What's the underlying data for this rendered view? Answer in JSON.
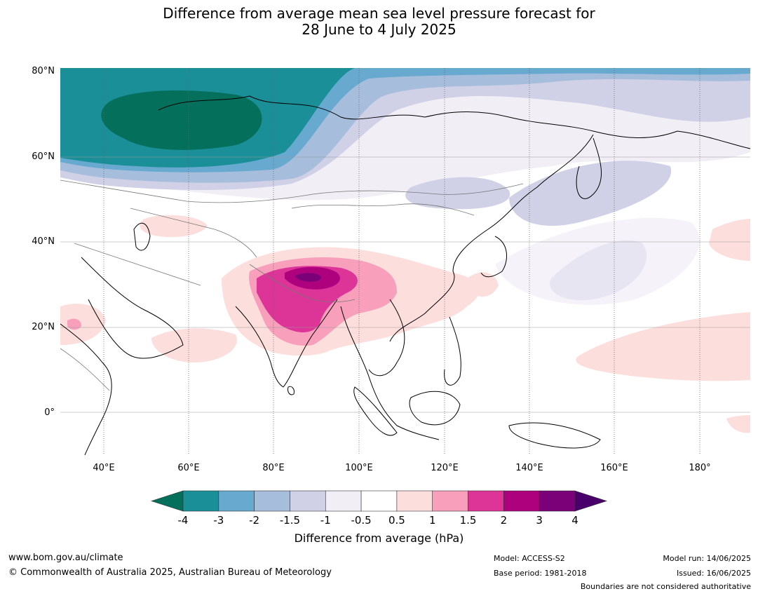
{
  "title": {
    "line1": "Difference from average mean sea level pressure forecast for",
    "line2": "28 June to 4 July 2025"
  },
  "map": {
    "lat_labels": [
      "80°N",
      "60°N",
      "40°N",
      "20°N",
      "0°"
    ],
    "lon_labels": [
      "40°E",
      "60°E",
      "80°E",
      "100°E",
      "120°E",
      "140°E",
      "160°E",
      "180°"
    ]
  },
  "legend": {
    "title": "Difference from average (hPa)",
    "ticks": [
      "-4",
      "-3",
      "-2",
      "-1.5",
      "-1",
      "-0.5",
      "0.5",
      "1",
      "1.5",
      "2",
      "3",
      "4"
    ],
    "colors": {
      "lt_-4": "#046f5a",
      "-4_-3": "#1a8f98",
      "-3_-2": "#67a9cf",
      "-2_-1.5": "#a6bddb",
      "-1.5_-1": "#d0d1e6",
      "-1_-0.5": "#f1eef6",
      "-0.5_0.5": "#ffffff",
      "0.5_1": "#fcdedd",
      "1_1.5": "#f8a0bb",
      "1.5_2": "#dd3497",
      "2_3": "#ae017e",
      "3_4": "#7a0177",
      "gt_4": "#49006a"
    }
  },
  "footer": {
    "url": "www.bom.gov.au/climate",
    "copyright": "© Commonwealth of Australia 2025, Australian Bureau of Meteorology",
    "model": "Model: ACCESS-S2",
    "base_period": "Base period: 1981-2018",
    "model_run": "Model run: 14/06/2025",
    "issued": "Issued: 16/06/2025",
    "boundaries": "Boundaries are not considered authoritative"
  }
}
